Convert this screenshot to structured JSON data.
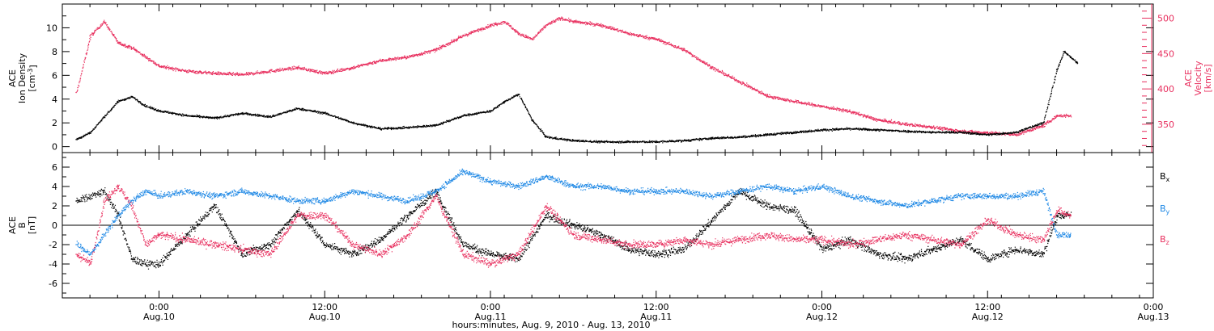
{
  "chart_data": [
    {
      "type": "scatter",
      "panel": "top",
      "ylabel_left": [
        "ACE",
        "Ion Density",
        "[cm^-3]"
      ],
      "ylabel_right": [
        "ACE",
        "Velocity",
        "[km/s]"
      ],
      "ylim_left": [
        -0.5,
        12
      ],
      "ylim_right": [
        310,
        520
      ],
      "left_ticks": [
        "0",
        "2",
        "4",
        "6",
        "8",
        "10"
      ],
      "right_ticks": [
        "350",
        "400",
        "450",
        "500"
      ],
      "series": [
        {
          "color": "#000000",
          "axis": "left",
          "points": [
            [
              "Aug 9 18:00",
              0.6
            ],
            [
              "Aug 9 19:00",
              1.2
            ],
            [
              "Aug 9 20:00",
              2.5
            ],
            [
              "Aug 9 21:00",
              3.8
            ],
            [
              "Aug 9 22:00",
              4.2
            ],
            [
              "Aug 9 23:00",
              3.4
            ],
            [
              "Aug 10 00:00",
              3.0
            ],
            [
              "Aug 10 02:00",
              2.6
            ],
            [
              "Aug 10 04:00",
              2.4
            ],
            [
              "Aug 10 06:00",
              2.8
            ],
            [
              "Aug 10 08:00",
              2.5
            ],
            [
              "Aug 10 10:00",
              3.2
            ],
            [
              "Aug 10 12:00",
              2.8
            ],
            [
              "Aug 10 14:00",
              2.0
            ],
            [
              "Aug 10 16:00",
              1.5
            ],
            [
              "Aug 10 18:00",
              1.6
            ],
            [
              "Aug 10 20:00",
              1.8
            ],
            [
              "Aug 10 22:00",
              2.6
            ],
            [
              "Aug 11 00:00",
              3.0
            ],
            [
              "Aug 11 01:00",
              3.8
            ],
            [
              "Aug 11 02:00",
              4.4
            ],
            [
              "Aug 11 03:00",
              2.2
            ],
            [
              "Aug 11 04:00",
              0.8
            ],
            [
              "Aug 11 06:00",
              0.5
            ],
            [
              "Aug 11 08:00",
              0.4
            ],
            [
              "Aug 11 10:00",
              0.4
            ],
            [
              "Aug 11 12:00",
              0.4
            ],
            [
              "Aug 11 14:00",
              0.5
            ],
            [
              "Aug 11 16:00",
              0.7
            ],
            [
              "Aug 11 18:00",
              0.8
            ],
            [
              "Aug 11 20:00",
              1.0
            ],
            [
              "Aug 11 22:00",
              1.2
            ],
            [
              "Aug 12 00:00",
              1.4
            ],
            [
              "Aug 12 02:00",
              1.5
            ],
            [
              "Aug 12 04:00",
              1.4
            ],
            [
              "Aug 12 06:00",
              1.3
            ],
            [
              "Aug 12 08:00",
              1.2
            ],
            [
              "Aug 12 10:00",
              1.2
            ],
            [
              "Aug 12 12:00",
              1.0
            ],
            [
              "Aug 12 14:00",
              1.2
            ],
            [
              "Aug 12 15:00",
              1.6
            ],
            [
              "Aug 12 16:00",
              2.0
            ],
            [
              "Aug 12 17:00",
              6.5
            ],
            [
              "Aug 12 17:30",
              8.0
            ],
            [
              "Aug 12 18:00",
              7.5
            ],
            [
              "Aug 12 18:30",
              7.0
            ]
          ]
        },
        {
          "color": "#e8305f",
          "axis": "right",
          "points": [
            [
              "Aug 9 18:00",
              395
            ],
            [
              "Aug 9 19:00",
              475
            ],
            [
              "Aug 9 20:00",
              495
            ],
            [
              "Aug 9 21:00",
              465
            ],
            [
              "Aug 9 22:00",
              458
            ],
            [
              "Aug 9 23:00",
              445
            ],
            [
              "Aug 10 00:00",
              432
            ],
            [
              "Aug 10 02:00",
              425
            ],
            [
              "Aug 10 04:00",
              422
            ],
            [
              "Aug 10 06:00",
              420
            ],
            [
              "Aug 10 08:00",
              425
            ],
            [
              "Aug 10 10:00",
              430
            ],
            [
              "Aug 10 12:00",
              422
            ],
            [
              "Aug 10 14:00",
              430
            ],
            [
              "Aug 10 16:00",
              440
            ],
            [
              "Aug 10 18:00",
              445
            ],
            [
              "Aug 10 20:00",
              455
            ],
            [
              "Aug 10 22:00",
              475
            ],
            [
              "Aug 11 00:00",
              490
            ],
            [
              "Aug 11 01:00",
              495
            ],
            [
              "Aug 11 02:00",
              478
            ],
            [
              "Aug 11 03:00",
              470
            ],
            [
              "Aug 11 04:00",
              490
            ],
            [
              "Aug 11 05:00",
              500
            ],
            [
              "Aug 11 06:00",
              495
            ],
            [
              "Aug 11 08:00",
              490
            ],
            [
              "Aug 11 10:00",
              478
            ],
            [
              "Aug 11 12:00",
              470
            ],
            [
              "Aug 11 14:00",
              455
            ],
            [
              "Aug 11 16:00",
              430
            ],
            [
              "Aug 11 18:00",
              410
            ],
            [
              "Aug 11 20:00",
              390
            ],
            [
              "Aug 11 22:00",
              382
            ],
            [
              "Aug 12 00:00",
              375
            ],
            [
              "Aug 12 02:00",
              368
            ],
            [
              "Aug 12 04:00",
              356
            ],
            [
              "Aug 12 06:00",
              350
            ],
            [
              "Aug 12 08:00",
              346
            ],
            [
              "Aug 12 10:00",
              340
            ],
            [
              "Aug 12 12:00",
              338
            ],
            [
              "Aug 12 14:00",
              335
            ],
            [
              "Aug 12 16:00",
              348
            ],
            [
              "Aug 12 17:00",
              362
            ],
            [
              "Aug 12 18:00",
              362
            ]
          ]
        }
      ]
    },
    {
      "type": "scatter",
      "panel": "bottom",
      "ylabel": [
        "ACE",
        "B",
        "[nT]"
      ],
      "ylim": [
        -7.5,
        7.5
      ],
      "ticks": [
        "6",
        "4",
        "2",
        "0",
        "-2",
        "-4",
        "-6"
      ],
      "legend": [
        "Bx",
        "By",
        "Bz"
      ],
      "series": [
        {
          "name": "Bx",
          "color": "#000000",
          "points": [
            [
              "Aug 9 18:00",
              2.5
            ],
            [
              "Aug 9 19:00",
              3.0
            ],
            [
              "Aug 9 20:00",
              3.5
            ],
            [
              "Aug 9 21:00",
              1.0
            ],
            [
              "Aug 9 22:00",
              -3.5
            ],
            [
              "Aug 9 23:00",
              -4.0
            ],
            [
              "Aug 10 00:00",
              -4.0
            ],
            [
              "Aug 10 02:00",
              -1.0
            ],
            [
              "Aug 10 04:00",
              2.0
            ],
            [
              "Aug 10 06:00",
              -3.0
            ],
            [
              "Aug 10 08:00",
              -2.0
            ],
            [
              "Aug 10 10:00",
              1.5
            ],
            [
              "Aug 10 12:00",
              -2.0
            ],
            [
              "Aug 10 14:00",
              -3.0
            ],
            [
              "Aug 10 16:00",
              -1.5
            ],
            [
              "Aug 10 18:00",
              1.0
            ],
            [
              "Aug 10 20:00",
              3.5
            ],
            [
              "Aug 10 22:00",
              -2.0
            ],
            [
              "Aug 11 00:00",
              -3.0
            ],
            [
              "Aug 11 02:00",
              -3.5
            ],
            [
              "Aug 11 04:00",
              1.0
            ],
            [
              "Aug 11 06:00",
              0.0
            ],
            [
              "Aug 11 08:00",
              -1.0
            ],
            [
              "Aug 11 10:00",
              -2.5
            ],
            [
              "Aug 11 12:00",
              -3.0
            ],
            [
              "Aug 11 14:00",
              -2.5
            ],
            [
              "Aug 11 16:00",
              0.5
            ],
            [
              "Aug 11 18:00",
              3.5
            ],
            [
              "Aug 11 20:00",
              2.0
            ],
            [
              "Aug 11 22:00",
              1.5
            ],
            [
              "Aug 12 00:00",
              -2.5
            ],
            [
              "Aug 12 02:00",
              -1.5
            ],
            [
              "Aug 12 04:00",
              -3.0
            ],
            [
              "Aug 12 06:00",
              -3.5
            ],
            [
              "Aug 12 08:00",
              -2.5
            ],
            [
              "Aug 12 10:00",
              -1.5
            ],
            [
              "Aug 12 12:00",
              -3.5
            ],
            [
              "Aug 12 14:00",
              -2.5
            ],
            [
              "Aug 12 16:00",
              -3.0
            ],
            [
              "Aug 12 17:00",
              1.0
            ],
            [
              "Aug 12 18:00",
              1.0
            ]
          ]
        },
        {
          "name": "By",
          "color": "#1e88e5",
          "points": [
            [
              "Aug 9 18:00",
              -2.0
            ],
            [
              "Aug 9 19:00",
              -3.0
            ],
            [
              "Aug 9 20:00",
              -1.0
            ],
            [
              "Aug 9 21:00",
              1.0
            ],
            [
              "Aug 9 22:00",
              2.5
            ],
            [
              "Aug 9 23:00",
              3.5
            ],
            [
              "Aug 10 00:00",
              3.0
            ],
            [
              "Aug 10 02:00",
              3.5
            ],
            [
              "Aug 10 04:00",
              3.0
            ],
            [
              "Aug 10 06:00",
              3.5
            ],
            [
              "Aug 10 08:00",
              3.0
            ],
            [
              "Aug 10 10:00",
              2.5
            ],
            [
              "Aug 10 12:00",
              2.5
            ],
            [
              "Aug 10 14:00",
              3.5
            ],
            [
              "Aug 10 16:00",
              3.0
            ],
            [
              "Aug 10 18:00",
              2.5
            ],
            [
              "Aug 10 20:00",
              3.5
            ],
            [
              "Aug 10 22:00",
              5.5
            ],
            [
              "Aug 11 00:00",
              4.5
            ],
            [
              "Aug 11 02:00",
              4.0
            ],
            [
              "Aug 11 04:00",
              5.0
            ],
            [
              "Aug 11 06:00",
              4.0
            ],
            [
              "Aug 11 08:00",
              4.0
            ],
            [
              "Aug 11 10:00",
              3.5
            ],
            [
              "Aug 11 12:00",
              3.5
            ],
            [
              "Aug 11 14:00",
              3.5
            ],
            [
              "Aug 11 16:00",
              3.0
            ],
            [
              "Aug 11 18:00",
              3.5
            ],
            [
              "Aug 11 20:00",
              4.0
            ],
            [
              "Aug 11 22:00",
              3.5
            ],
            [
              "Aug 12 00:00",
              4.0
            ],
            [
              "Aug 12 02:00",
              3.0
            ],
            [
              "Aug 12 04:00",
              2.5
            ],
            [
              "Aug 12 06:00",
              2.0
            ],
            [
              "Aug 12 08:00",
              2.5
            ],
            [
              "Aug 12 10:00",
              3.0
            ],
            [
              "Aug 12 12:00",
              3.0
            ],
            [
              "Aug 12 14:00",
              3.0
            ],
            [
              "Aug 12 16:00",
              3.5
            ],
            [
              "Aug 12 17:00",
              -1.0
            ],
            [
              "Aug 12 18:00",
              -1.0
            ]
          ]
        },
        {
          "name": "Bz",
          "color": "#e8305f",
          "points": [
            [
              "Aug 9 18:00",
              -3.0
            ],
            [
              "Aug 9 19:00",
              -4.0
            ],
            [
              "Aug 9 20:00",
              2.5
            ],
            [
              "Aug 9 21:00",
              4.0
            ],
            [
              "Aug 9 22:00",
              2.0
            ],
            [
              "Aug 9 23:00",
              -2.0
            ],
            [
              "Aug 10 00:00",
              -1.0
            ],
            [
              "Aug 10 02:00",
              -1.5
            ],
            [
              "Aug 10 04:00",
              -2.0
            ],
            [
              "Aug 10 06:00",
              -2.5
            ],
            [
              "Aug 10 08:00",
              -3.0
            ],
            [
              "Aug 10 10:00",
              1.0
            ],
            [
              "Aug 10 12:00",
              1.0
            ],
            [
              "Aug 10 14:00",
              -2.0
            ],
            [
              "Aug 10 16:00",
              -3.0
            ],
            [
              "Aug 10 18:00",
              -1.0
            ],
            [
              "Aug 10 20:00",
              3.0
            ],
            [
              "Aug 10 22:00",
              -3.0
            ],
            [
              "Aug 11 00:00",
              -4.0
            ],
            [
              "Aug 11 02:00",
              -3.0
            ],
            [
              "Aug 11 04:00",
              2.0
            ],
            [
              "Aug 11 06:00",
              -1.0
            ],
            [
              "Aug 11 08:00",
              -1.5
            ],
            [
              "Aug 11 10:00",
              -2.0
            ],
            [
              "Aug 11 12:00",
              -2.0
            ],
            [
              "Aug 11 14:00",
              -1.5
            ],
            [
              "Aug 11 16:00",
              -2.0
            ],
            [
              "Aug 11 18:00",
              -1.5
            ],
            [
              "Aug 11 20:00",
              -1.0
            ],
            [
              "Aug 11 22:00",
              -1.5
            ],
            [
              "Aug 12 00:00",
              -1.5
            ],
            [
              "Aug 12 02:00",
              -2.0
            ],
            [
              "Aug 12 04:00",
              -1.5
            ],
            [
              "Aug 12 06:00",
              -1.0
            ],
            [
              "Aug 12 08:00",
              -1.5
            ],
            [
              "Aug 12 10:00",
              -2.0
            ],
            [
              "Aug 12 12:00",
              0.5
            ],
            [
              "Aug 12 14:00",
              -1.0
            ],
            [
              "Aug 12 16:00",
              -1.5
            ],
            [
              "Aug 12 17:00",
              1.5
            ],
            [
              "Aug 12 18:00",
              1.0
            ]
          ]
        }
      ]
    }
  ],
  "x_axis": {
    "range": [
      "Aug 9 17:00",
      "Aug 13 00:00"
    ],
    "ticks": [
      {
        "time": "Aug 10 00:00",
        "top": "0:00",
        "bottom": "Aug.10"
      },
      {
        "time": "Aug 10 12:00",
        "top": "12:00",
        "bottom": "Aug.10"
      },
      {
        "time": "Aug 11 00:00",
        "top": "0:00",
        "bottom": "Aug.11"
      },
      {
        "time": "Aug 11 12:00",
        "top": "12:00",
        "bottom": "Aug.11"
      },
      {
        "time": "Aug 12 00:00",
        "top": "0:00",
        "bottom": "Aug.12"
      },
      {
        "time": "Aug 12 12:00",
        "top": "12:00",
        "bottom": "Aug.12"
      },
      {
        "time": "Aug 13 00:00",
        "top": "0:00",
        "bottom": "Aug.13"
      }
    ],
    "title": "hours:minutes, Aug.  9, 2010 - Aug. 13, 2010"
  }
}
